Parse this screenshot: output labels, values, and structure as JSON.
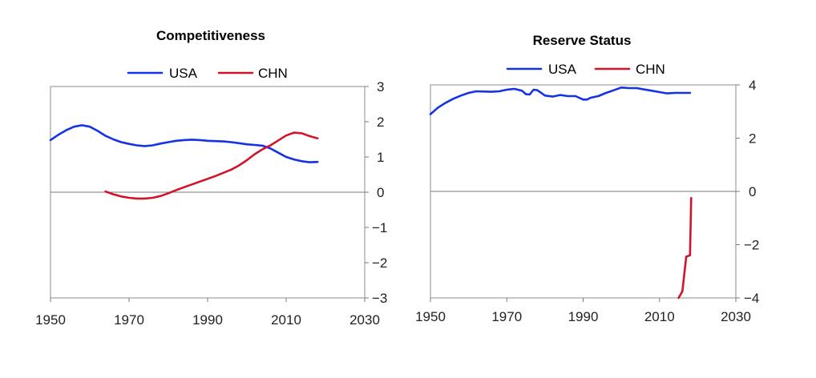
{
  "colors": {
    "USA": "#1432e6",
    "CHN": "#d21428"
  },
  "chart_data": [
    {
      "type": "line",
      "title": "Competitiveness",
      "legend_position": "top",
      "xlim": [
        1950,
        2030
      ],
      "ylim": [
        -3,
        3
      ],
      "xticks": [
        "1950",
        "1970",
        "1990",
        "2010",
        "2030"
      ],
      "yticks": [
        "3",
        "2",
        "1",
        "0",
        "-1",
        "-2",
        "-3"
      ],
      "y_axis_side": "right",
      "series": [
        {
          "name": "USA",
          "color": "USA",
          "x": [
            1950,
            1952,
            1954,
            1956,
            1958,
            1960,
            1962,
            1964,
            1966,
            1968,
            1970,
            1972,
            1974,
            1976,
            1978,
            1980,
            1982,
            1984,
            1986,
            1988,
            1990,
            1992,
            1994,
            1996,
            1998,
            2000,
            2002,
            2004,
            2006,
            2008,
            2010,
            2012,
            2014,
            2016,
            2018
          ],
          "y": [
            1.48,
            1.63,
            1.76,
            1.86,
            1.9,
            1.86,
            1.74,
            1.6,
            1.5,
            1.42,
            1.37,
            1.33,
            1.31,
            1.33,
            1.38,
            1.42,
            1.46,
            1.48,
            1.49,
            1.48,
            1.46,
            1.45,
            1.44,
            1.42,
            1.39,
            1.36,
            1.34,
            1.32,
            1.24,
            1.12,
            1.0,
            0.93,
            0.88,
            0.85,
            0.86
          ]
        },
        {
          "name": "CHN",
          "color": "CHN",
          "x": [
            1964,
            1966,
            1968,
            1970,
            1972,
            1974,
            1976,
            1978,
            1980,
            1982,
            1984,
            1986,
            1988,
            1990,
            1992,
            1994,
            1996,
            1998,
            2000,
            2002,
            2004,
            2006,
            2008,
            2010,
            2012,
            2014,
            2016,
            2018
          ],
          "y": [
            0.02,
            -0.06,
            -0.12,
            -0.16,
            -0.18,
            -0.18,
            -0.16,
            -0.11,
            -0.03,
            0.06,
            0.14,
            0.22,
            0.3,
            0.38,
            0.46,
            0.55,
            0.64,
            0.76,
            0.91,
            1.08,
            1.22,
            1.33,
            1.47,
            1.61,
            1.69,
            1.67,
            1.59,
            1.53
          ]
        }
      ]
    },
    {
      "type": "line",
      "title": "Reserve Status",
      "legend_position": "top",
      "xlim": [
        1950,
        2030
      ],
      "ylim": [
        -4,
        4
      ],
      "xticks": [
        "1950",
        "1970",
        "1990",
        "2010",
        "2030"
      ],
      "yticks": [
        "4",
        "2",
        "0",
        "-2",
        "-4"
      ],
      "y_axis_side": "right",
      "series": [
        {
          "name": "USA",
          "color": "USA",
          "x": [
            1950,
            1952,
            1954,
            1956,
            1958,
            1960,
            1962,
            1964,
            1966,
            1968,
            1970,
            1972,
            1974,
            1975,
            1976,
            1977,
            1978,
            1980,
            1982,
            1984,
            1986,
            1988,
            1990,
            1991,
            1992,
            1994,
            1996,
            1998,
            2000,
            2002,
            2004,
            2006,
            2008,
            2010,
            2012,
            2014,
            2016,
            2018
          ],
          "y": [
            2.9,
            3.15,
            3.33,
            3.48,
            3.6,
            3.7,
            3.76,
            3.75,
            3.74,
            3.76,
            3.82,
            3.85,
            3.78,
            3.65,
            3.64,
            3.82,
            3.8,
            3.6,
            3.56,
            3.62,
            3.58,
            3.58,
            3.45,
            3.45,
            3.52,
            3.58,
            3.7,
            3.8,
            3.9,
            3.88,
            3.88,
            3.83,
            3.78,
            3.73,
            3.68,
            3.7,
            3.7,
            3.7
          ]
        },
        {
          "name": "CHN",
          "color": "CHN",
          "x": [
            2015,
            2016,
            2017,
            2018,
            2018.3
          ],
          "y": [
            -4.0,
            -3.75,
            -2.45,
            -2.4,
            -0.25
          ]
        }
      ]
    }
  ]
}
